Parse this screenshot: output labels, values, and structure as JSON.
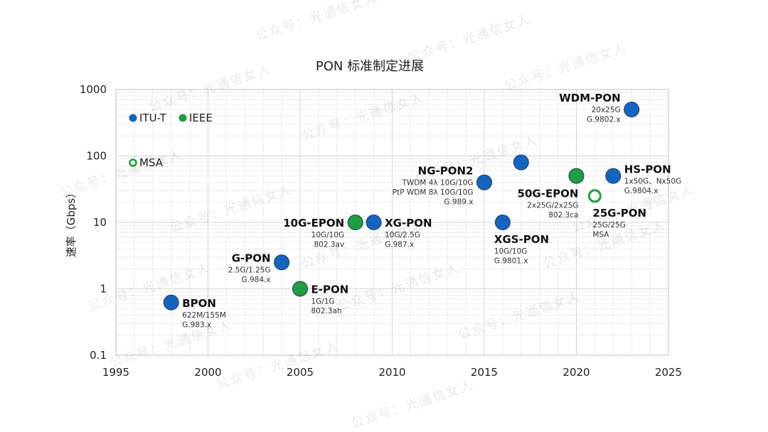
{
  "watermark": "公众号：光通信女人",
  "chart_data": {
    "type": "scatter",
    "title": "PON 标准制定进展",
    "xlabel": "",
    "ylabel": "速率（Gbps）",
    "xlim": [
      1995,
      2025
    ],
    "ylim": [
      0.1,
      1000
    ],
    "yscale": "log",
    "grid": true,
    "x_ticks": [
      "1995",
      "2000",
      "2005",
      "2010",
      "2015",
      "2020",
      "2025"
    ],
    "y_ticks": [
      "0.1",
      "1",
      "10",
      "100",
      "1000"
    ],
    "legend_position": "top-left",
    "legend": [
      {
        "label": "ITU-T",
        "style": "filled",
        "color": "#1565C0"
      },
      {
        "label": "IEEE",
        "style": "filled",
        "color": "#1E9E3E"
      },
      {
        "label": "MSA",
        "style": "hollow",
        "color": "#1E9E3E"
      }
    ],
    "points": [
      {
        "name": "BPON",
        "x": 1998,
        "y": 0.622,
        "org": "ITU-T",
        "lines": [
          "622M/155M",
          "G.983.x"
        ],
        "label_pos": "right"
      },
      {
        "name": "G-PON",
        "x": 2004,
        "y": 2.5,
        "org": "ITU-T",
        "lines": [
          "2.5G/1.25G",
          "G.984.x"
        ],
        "label_pos": "left"
      },
      {
        "name": "E-PON",
        "x": 2005,
        "y": 1,
        "org": "IEEE",
        "lines": [
          "1G/1G",
          "802.3ah"
        ],
        "label_pos": "right"
      },
      {
        "name": "10G-EPON",
        "x": 2008,
        "y": 10,
        "org": "IEEE",
        "lines": [
          "10G/10G",
          "802.3av"
        ],
        "label_pos": "left"
      },
      {
        "name": "XG-PON",
        "x": 2009,
        "y": 10,
        "org": "ITU-T",
        "lines": [
          "10G/2.5G",
          "G.987.x"
        ],
        "label_pos": "right"
      },
      {
        "name": "NG-PON2",
        "x": 2015,
        "y": 40,
        "org": "ITU-T",
        "lines": [
          "TWDM 4λ 10G/10G",
          "PtP WDM 8λ 10G/10G",
          "G.989.x"
        ],
        "label_pos": "left"
      },
      {
        "name": "XGS-PON",
        "x": 2016,
        "y": 10,
        "org": "ITU-T",
        "lines": [
          "10G/10G",
          "G.9801.x"
        ],
        "label_pos": "below"
      },
      {
        "name": "",
        "x": 2017,
        "y": 80,
        "org": "ITU-T",
        "lines": [],
        "label_pos": "none"
      },
      {
        "name": "50G-EPON",
        "x": 2020,
        "y": 50,
        "org": "IEEE",
        "lines": [
          "2x25G/2x25G",
          "802.3ca"
        ],
        "label_pos": "below-left"
      },
      {
        "name": "25G-PON",
        "x": 2021,
        "y": 25,
        "org": "MSA",
        "lines": [
          "25G/25G",
          "MSA"
        ],
        "label_pos": "below-right"
      },
      {
        "name": "HS-PON",
        "x": 2022,
        "y": 50,
        "org": "ITU-T",
        "lines": [
          "1x50G、Nx50G",
          "G.9804.x"
        ],
        "label_pos": "right"
      },
      {
        "name": "WDM-PON",
        "x": 2023,
        "y": 500,
        "org": "ITU-T",
        "lines": [
          "20x25G",
          "G.9802.x"
        ],
        "label_pos": "left"
      }
    ]
  }
}
